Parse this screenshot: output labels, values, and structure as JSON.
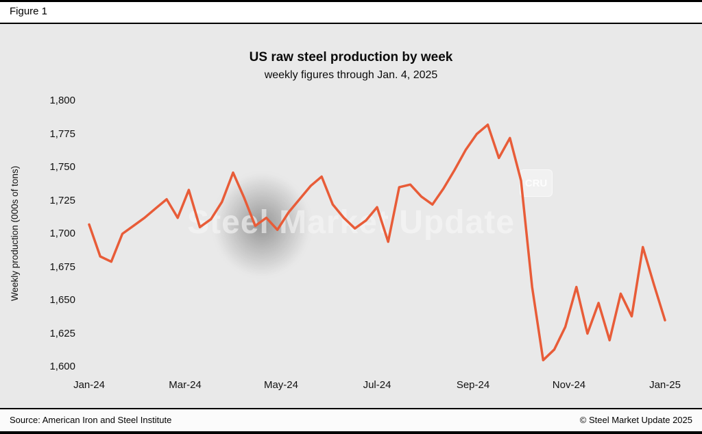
{
  "figure_label": "Figure 1",
  "chart_data": {
    "type": "line",
    "title": "US raw steel production by week",
    "subtitle": "weekly figures through Jan. 4, 2025",
    "ylabel": "Weekly production (000s of tons)",
    "xlabel": "",
    "ylim": [
      1600,
      1800
    ],
    "grid": false,
    "legend_position": "none",
    "background": "#E9E9E9",
    "y_ticks": [
      {
        "value": 1600,
        "label": "1,600"
      },
      {
        "value": 1625,
        "label": "1,625"
      },
      {
        "value": 1650,
        "label": "1,650"
      },
      {
        "value": 1675,
        "label": "1,675"
      },
      {
        "value": 1700,
        "label": "1,700"
      },
      {
        "value": 1725,
        "label": "1,725"
      },
      {
        "value": 1750,
        "label": "1,750"
      },
      {
        "value": 1775,
        "label": "1,775"
      },
      {
        "value": 1800,
        "label": "1,800"
      }
    ],
    "x_ticks": [
      {
        "position": 0.0,
        "label": "Jan-24"
      },
      {
        "position": 0.1667,
        "label": "Mar-24"
      },
      {
        "position": 0.3333,
        "label": "May-24"
      },
      {
        "position": 0.5,
        "label": "Jul-24"
      },
      {
        "position": 0.6667,
        "label": "Sep-24"
      },
      {
        "position": 0.8333,
        "label": "Nov-24"
      },
      {
        "position": 1.0,
        "label": "Jan-25"
      }
    ],
    "series": [
      {
        "name": "US weekly raw steel production (000s of tons)",
        "color": "#E85C38",
        "values": [
          1707,
          1683,
          1679,
          1700,
          1706,
          1712,
          1719,
          1726,
          1712,
          1733,
          1705,
          1711,
          1724,
          1746,
          1727,
          1706,
          1712,
          1703,
          1716,
          1726,
          1736,
          1743,
          1722,
          1712,
          1704,
          1710,
          1720,
          1694,
          1735,
          1737,
          1728,
          1722,
          1734,
          1748,
          1763,
          1775,
          1782,
          1757,
          1772,
          1740,
          1660,
          1605,
          1613,
          1630,
          1660,
          1625,
          1648,
          1620,
          1655,
          1638,
          1690,
          1662,
          1635
        ]
      }
    ]
  },
  "watermark": {
    "primary": "Steel Market",
    "secondary": "Update",
    "badge": "CRU"
  },
  "footer": {
    "source": "Source: American Iron and Steel Institute",
    "copyright": "© Steel Market Update 2025"
  }
}
